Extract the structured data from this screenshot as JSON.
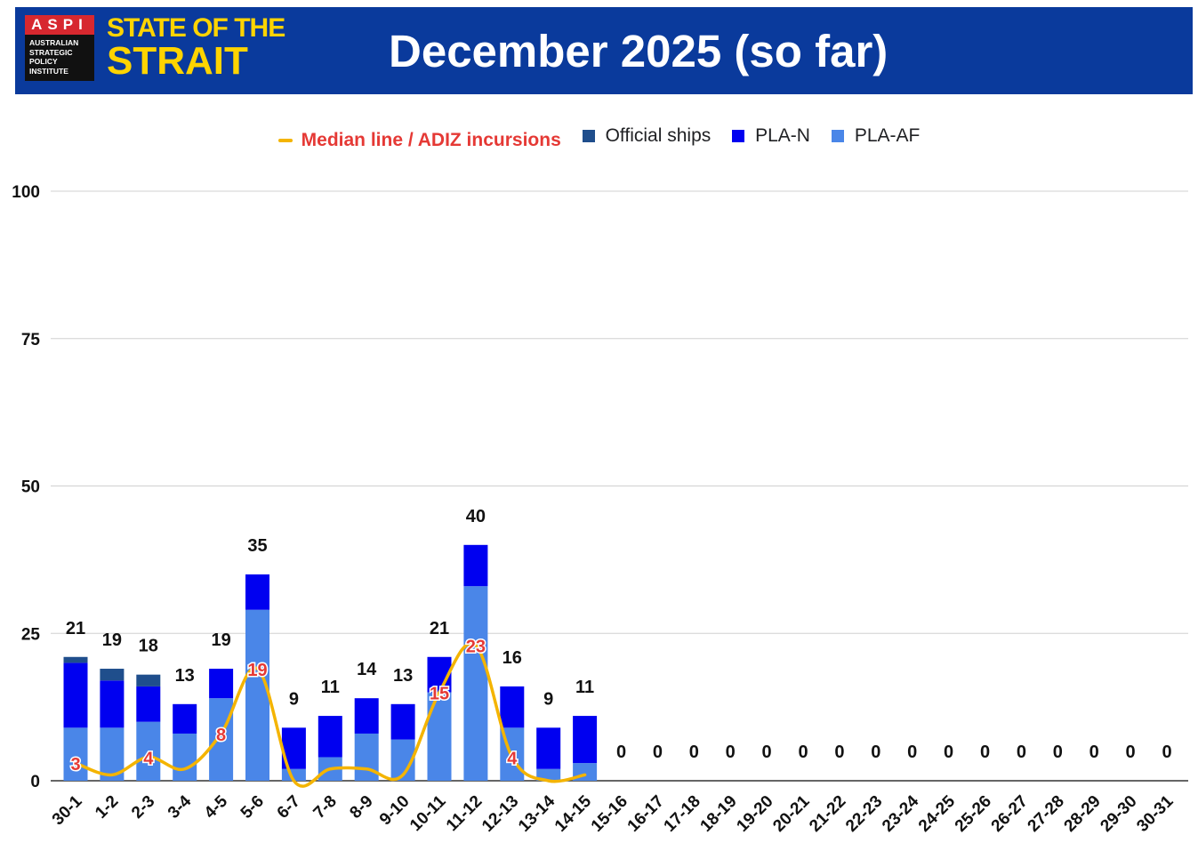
{
  "header": {
    "org_abbr": "ASPI",
    "org_name_lines": [
      "AUSTRALIAN",
      "STRATEGIC",
      "POLICY",
      "INSTITUTE"
    ],
    "brand_line1": "STATE OF THE",
    "brand_line2": "STRAIT",
    "title": "December 2025 (so far)"
  },
  "colors": {
    "banner": "#0a3a9c",
    "brand_yellow": "#ffd400",
    "official_ships": "#1f4e8c",
    "pla_n": "#0000f0",
    "pla_af": "#4a86e8",
    "median_line": "#f4b400",
    "median_label": "#e53935"
  },
  "legend": {
    "median": "Median line / ADIZ incursions",
    "official": "Official ships",
    "plan": "PLA-N",
    "plaaf": "PLA-AF"
  },
  "chart_data": {
    "type": "bar",
    "stacked": true,
    "categories": [
      "30-1",
      "1-2",
      "2-3",
      "3-4",
      "4-5",
      "5-6",
      "6-7",
      "7-8",
      "8-9",
      "9-10",
      "10-11",
      "11-12",
      "12-13",
      "13-14",
      "14-15",
      "15-16",
      "16-17",
      "17-18",
      "18-19",
      "19-20",
      "20-21",
      "21-22",
      "22-23",
      "23-24",
      "24-25",
      "25-26",
      "26-27",
      "27-28",
      "28-29",
      "29-30",
      "30-31"
    ],
    "series": [
      {
        "name": "PLA-AF",
        "values": [
          9,
          9,
          10,
          8,
          14,
          29,
          2,
          4,
          8,
          7,
          15,
          33,
          9,
          2,
          3,
          0,
          0,
          0,
          0,
          0,
          0,
          0,
          0,
          0,
          0,
          0,
          0,
          0,
          0,
          0,
          0
        ]
      },
      {
        "name": "PLA-N",
        "values": [
          11,
          8,
          6,
          5,
          5,
          6,
          7,
          7,
          6,
          6,
          6,
          7,
          7,
          7,
          8,
          0,
          0,
          0,
          0,
          0,
          0,
          0,
          0,
          0,
          0,
          0,
          0,
          0,
          0,
          0,
          0
        ]
      },
      {
        "name": "Official ships",
        "values": [
          1,
          2,
          2,
          0,
          0,
          0,
          0,
          0,
          0,
          0,
          0,
          0,
          0,
          0,
          0,
          0,
          0,
          0,
          0,
          0,
          0,
          0,
          0,
          0,
          0,
          0,
          0,
          0,
          0,
          0,
          0
        ]
      }
    ],
    "totals": [
      21,
      19,
      18,
      13,
      19,
      35,
      9,
      11,
      14,
      13,
      21,
      40,
      16,
      9,
      11,
      0,
      0,
      0,
      0,
      0,
      0,
      0,
      0,
      0,
      0,
      0,
      0,
      0,
      0,
      0,
      0
    ],
    "median_line": {
      "name": "Median line / ADIZ incursions",
      "values": [
        3,
        1,
        4,
        2,
        8,
        19,
        0,
        2,
        2,
        1,
        15,
        23,
        4,
        0,
        1
      ]
    },
    "median_labels": [
      {
        "index": 0,
        "value": 3
      },
      {
        "index": 2,
        "value": 4
      },
      {
        "index": 4,
        "value": 8
      },
      {
        "index": 5,
        "value": 19
      },
      {
        "index": 10,
        "value": 15
      },
      {
        "index": 11,
        "value": 23
      },
      {
        "index": 12,
        "value": 4
      }
    ],
    "ylim": [
      0,
      100
    ],
    "yticks": [
      0,
      25,
      50,
      75,
      100
    ],
    "xlabel": "",
    "ylabel": "",
    "grid": true,
    "legend_position": "top"
  }
}
